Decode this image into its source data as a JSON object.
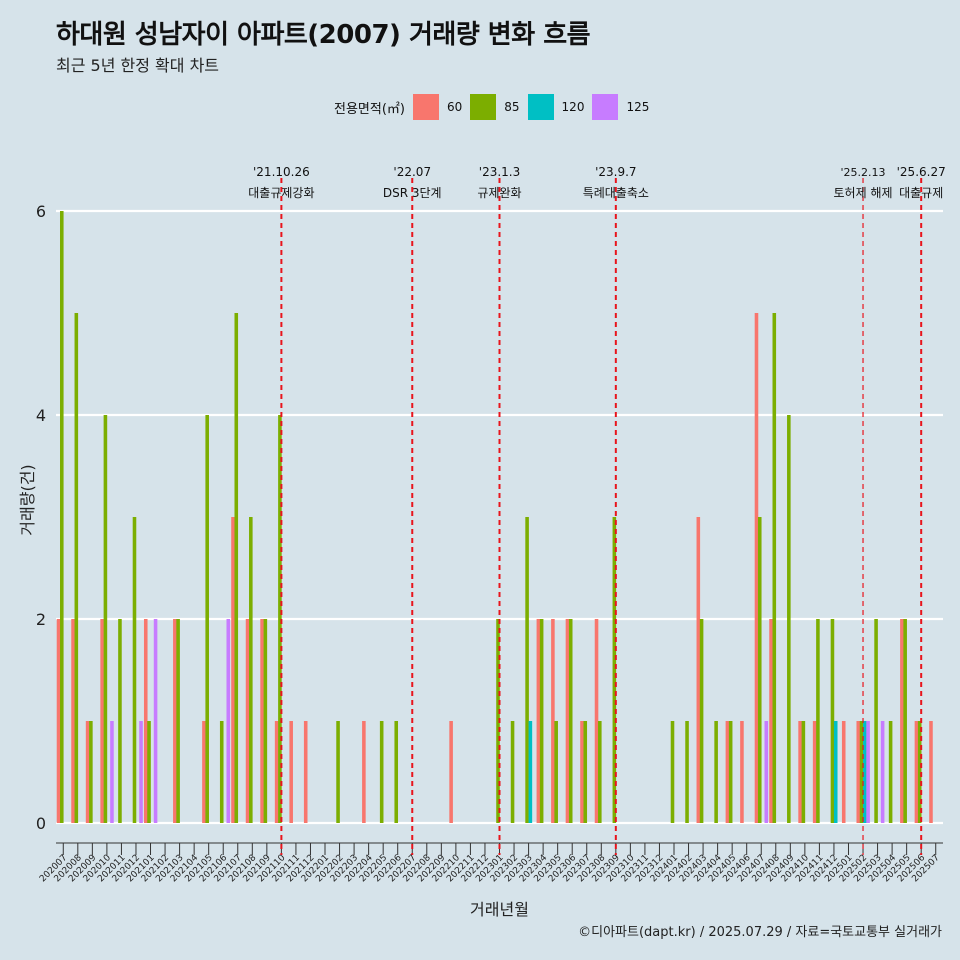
{
  "title": "하대원 성남자이 아파트(2007) 거래량 변화 흐름",
  "subtitle": "최근 5년 한정 확대 차트",
  "caption": "©디아파트(dapt.kr) / 2025.07.29 / 자료=국토교통부 실거래가",
  "colors": {
    "background": "#d6e3ea",
    "grid": "#ffffff",
    "event_line": "#e8141c"
  },
  "legend": {
    "title": "전용면적(㎡)",
    "items": [
      {
        "label": "60",
        "color": "#f8766d"
      },
      {
        "label": "85",
        "color": "#7cae00"
      },
      {
        "label": "120",
        "color": "#00bfc4"
      },
      {
        "label": "125",
        "color": "#c77cff"
      }
    ]
  },
  "chart_data": {
    "type": "bar",
    "xlabel": "거래년월",
    "ylabel": "거래량(건)",
    "ylim": [
      0,
      6
    ],
    "yticks": [
      0,
      2,
      4,
      6
    ],
    "grid": true,
    "legend_position": "top",
    "categories": [
      "202007",
      "202008",
      "202009",
      "202010",
      "202011",
      "202012",
      "202101",
      "202102",
      "202103",
      "202104",
      "202105",
      "202106",
      "202107",
      "202108",
      "202109",
      "202110",
      "202111",
      "202112",
      "202201",
      "202202",
      "202203",
      "202204",
      "202205",
      "202206",
      "202207",
      "202208",
      "202209",
      "202210",
      "202211",
      "202212",
      "202301",
      "202302",
      "202303",
      "202304",
      "202305",
      "202306",
      "202307",
      "202308",
      "202309",
      "202310",
      "202311",
      "202312",
      "202401",
      "202402",
      "202403",
      "202404",
      "202405",
      "202406",
      "202407",
      "202408",
      "202409",
      "202410",
      "202411",
      "202412",
      "202501",
      "202502",
      "202503",
      "202504",
      "202505",
      "202506",
      "202507"
    ],
    "series": [
      {
        "name": "60",
        "values": [
          2,
          2,
          1,
          2,
          0,
          0,
          2,
          0,
          2,
          0,
          1,
          0,
          3,
          2,
          2,
          1,
          1,
          1,
          0,
          0,
          0,
          1,
          0,
          0,
          0,
          0,
          0,
          1,
          0,
          0,
          0,
          0,
          0,
          2,
          2,
          2,
          1,
          2,
          0,
          0,
          0,
          0,
          0,
          0,
          3,
          0,
          1,
          1,
          5,
          2,
          0,
          1,
          1,
          0,
          1,
          1,
          0,
          0,
          2,
          1,
          1
        ]
      },
      {
        "name": "85",
        "values": [
          6,
          5,
          1,
          4,
          2,
          3,
          1,
          0,
          2,
          0,
          4,
          1,
          5,
          3,
          2,
          4,
          0,
          0,
          0,
          1,
          0,
          0,
          1,
          1,
          0,
          0,
          0,
          0,
          0,
          0,
          2,
          1,
          3,
          2,
          1,
          2,
          1,
          1,
          3,
          0,
          0,
          0,
          1,
          1,
          2,
          1,
          1,
          0,
          3,
          5,
          4,
          1,
          2,
          2,
          0,
          1,
          2,
          1,
          2,
          1,
          0
        ]
      },
      {
        "name": "120",
        "values": [
          0,
          0,
          0,
          0,
          0,
          0,
          0,
          0,
          0,
          0,
          0,
          0,
          0,
          0,
          0,
          0,
          0,
          0,
          0,
          0,
          0,
          0,
          0,
          0,
          0,
          0,
          0,
          0,
          0,
          0,
          0,
          0,
          1,
          0,
          0,
          0,
          0,
          0,
          0,
          0,
          0,
          0,
          0,
          0,
          0,
          0,
          0,
          0,
          0,
          0,
          0,
          0,
          0,
          1,
          0,
          1,
          0,
          0,
          0,
          0,
          0
        ]
      },
      {
        "name": "125",
        "values": [
          0,
          0,
          0,
          1,
          0,
          1,
          2,
          0,
          0,
          0,
          0,
          2,
          0,
          0,
          0,
          0,
          0,
          0,
          0,
          0,
          0,
          0,
          0,
          0,
          0,
          0,
          0,
          0,
          0,
          0,
          0,
          0,
          0,
          0,
          0,
          0,
          0,
          0,
          0,
          0,
          0,
          0,
          0,
          0,
          0,
          0,
          0,
          0,
          1,
          0,
          0,
          0,
          0,
          0,
          0,
          1,
          1,
          0,
          0,
          0,
          0
        ]
      }
    ],
    "events": [
      {
        "date": "'21.10.26",
        "label": "대출규제강화",
        "index": 15.5
      },
      {
        "date": "'22.07",
        "label": "DSR 3단계",
        "index": 24.5
      },
      {
        "date": "'23.1.3",
        "label": "규제완화",
        "index": 30.5
      },
      {
        "date": "'23.9.7",
        "label": "특례대출축소",
        "index": 38.5
      },
      {
        "date": "'25.2.13",
        "label": "토허제 해제",
        "index": 55.5
      },
      {
        "date": "'25.6.27",
        "label": "대출규제",
        "index": 59.5
      }
    ]
  }
}
